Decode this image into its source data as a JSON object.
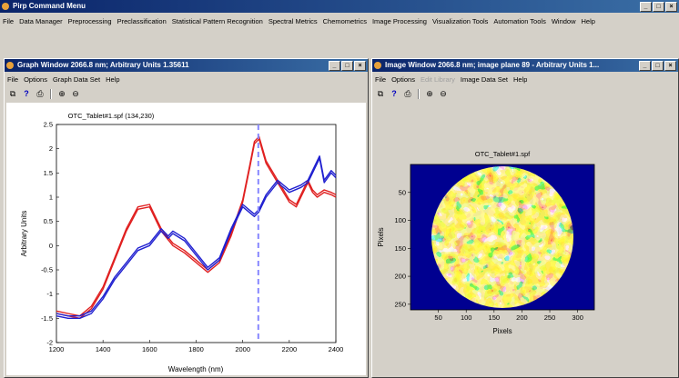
{
  "main": {
    "title": "Pirp Command Menu",
    "menu": [
      "File",
      "Data Manager",
      "Preprocessing",
      "Preclassification",
      "Statistical Pattern Recognition",
      "Spectral Metrics",
      "Chemometrics",
      "Image Processing",
      "Visualization Tools",
      "Automation Tools",
      "Window",
      "Help"
    ]
  },
  "graph_window": {
    "title": "Graph Window 2066.8 nm; Arbitrary Units 1.35611",
    "menu": [
      "File",
      "Options",
      "Graph Data Set",
      "Help"
    ],
    "plot_title": "OTC_Tablet#1.spf (134,230)",
    "chart_data": {
      "type": "line",
      "xlabel": "Wavelength (nm)",
      "ylabel": "Arbitrary Units",
      "xlim": [
        1200,
        2400
      ],
      "ylim": [
        -2,
        2.5
      ],
      "xticks": [
        1200,
        1400,
        1600,
        1800,
        2000,
        2200,
        2400
      ],
      "yticks": [
        -2,
        -1.5,
        -1,
        -0.5,
        0,
        0.5,
        1,
        1.5,
        2,
        2.5
      ],
      "vline_x": 2067,
      "series": [
        {
          "color": "#e02020",
          "x": [
            1200,
            1250,
            1300,
            1350,
            1400,
            1450,
            1500,
            1550,
            1600,
            1650,
            1700,
            1750,
            1800,
            1850,
            1900,
            1950,
            2000,
            2030,
            2050,
            2070,
            2100,
            2150,
            2200,
            2230,
            2250,
            2280,
            2300,
            2320,
            2350,
            2380,
            2400
          ],
          "y": [
            -1.4,
            -1.45,
            -1.5,
            -1.3,
            -0.9,
            -0.3,
            0.3,
            0.75,
            0.8,
            0.3,
            0.0,
            -0.15,
            -0.35,
            -0.55,
            -0.35,
            0.2,
            0.9,
            1.6,
            2.1,
            2.2,
            1.7,
            1.3,
            0.9,
            0.8,
            1.0,
            1.3,
            1.1,
            1.0,
            1.1,
            1.05,
            1.0
          ]
        },
        {
          "color": "#e02020",
          "x": [
            1200,
            1250,
            1300,
            1350,
            1400,
            1450,
            1500,
            1550,
            1600,
            1650,
            1700,
            1750,
            1800,
            1850,
            1900,
            1950,
            2000,
            2030,
            2050,
            2070,
            2100,
            2150,
            2200,
            2230,
            2250,
            2280,
            2300,
            2320,
            2350,
            2380,
            2400
          ],
          "y": [
            -1.35,
            -1.4,
            -1.45,
            -1.25,
            -0.85,
            -0.25,
            0.35,
            0.8,
            0.85,
            0.35,
            0.05,
            -0.1,
            -0.3,
            -0.5,
            -0.3,
            0.25,
            0.95,
            1.65,
            2.15,
            2.25,
            1.75,
            1.35,
            0.95,
            0.85,
            1.05,
            1.35,
            1.15,
            1.05,
            1.15,
            1.1,
            1.05
          ]
        },
        {
          "color": "#2020d0",
          "x": [
            1200,
            1250,
            1300,
            1350,
            1400,
            1450,
            1500,
            1550,
            1600,
            1650,
            1680,
            1700,
            1750,
            1800,
            1850,
            1900,
            1950,
            2000,
            2050,
            2070,
            2100,
            2150,
            2200,
            2250,
            2280,
            2300,
            2330,
            2350,
            2380,
            2400
          ],
          "y": [
            -1.45,
            -1.5,
            -1.5,
            -1.4,
            -1.1,
            -0.7,
            -0.4,
            -0.1,
            0.0,
            0.3,
            0.15,
            0.25,
            0.1,
            -0.2,
            -0.5,
            -0.3,
            0.3,
            0.8,
            0.6,
            0.7,
            1.0,
            1.3,
            1.1,
            1.2,
            1.3,
            1.5,
            1.8,
            1.3,
            1.5,
            1.4
          ]
        },
        {
          "color": "#2020d0",
          "x": [
            1200,
            1250,
            1300,
            1350,
            1400,
            1450,
            1500,
            1550,
            1600,
            1650,
            1680,
            1700,
            1750,
            1800,
            1850,
            1900,
            1950,
            2000,
            2050,
            2070,
            2100,
            2150,
            2200,
            2250,
            2280,
            2300,
            2330,
            2350,
            2380,
            2400
          ],
          "y": [
            -1.4,
            -1.45,
            -1.45,
            -1.35,
            -1.05,
            -0.65,
            -0.35,
            -0.05,
            0.05,
            0.35,
            0.2,
            0.3,
            0.15,
            -0.15,
            -0.45,
            -0.25,
            0.35,
            0.85,
            0.65,
            0.75,
            1.05,
            1.35,
            1.15,
            1.25,
            1.35,
            1.55,
            1.85,
            1.35,
            1.55,
            1.45
          ]
        }
      ]
    }
  },
  "image_window": {
    "title": "Image Window 2066.8 nm; image plane 89 - Arbitrary Units 1...",
    "menu": [
      "File",
      "Options",
      "Edit Library",
      "Image Data Set",
      "Help"
    ],
    "plot_title": "OTC_Tablet#1.spf",
    "xlabel": "Pixels",
    "ylabel": "Pixels",
    "xticks": [
      50,
      100,
      150,
      200,
      250,
      300
    ],
    "yticks": [
      50,
      100,
      150,
      200,
      250
    ],
    "xlim": [
      0,
      330
    ],
    "ylim": [
      0,
      260
    ],
    "background_color": "#000090"
  }
}
